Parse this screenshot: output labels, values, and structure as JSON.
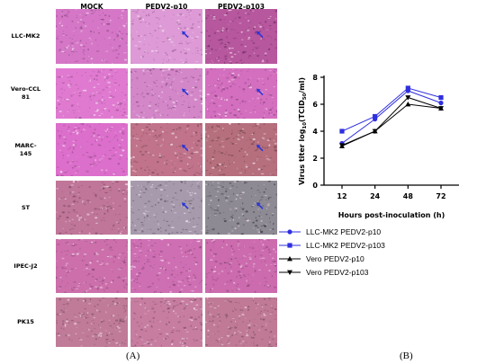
{
  "figure": {
    "panel_a": {
      "label": "(A)",
      "columns": [
        "MOCK",
        "PEDV2-p10",
        "PEDV2-p103"
      ],
      "rows": [
        {
          "label_lines": [
            "LLC-MK2"
          ],
          "tones": [
            {
              "base": "#d577c6",
              "speck": "#8a4a86"
            },
            {
              "base": "#dd9ad6",
              "speck": "#9c6194"
            },
            {
              "base": "#b7579e",
              "speck": "#6e2f62"
            }
          ],
          "arrows": [
            false,
            true,
            true
          ]
        },
        {
          "label_lines": [
            "Vero-CCL",
            "81"
          ],
          "tones": [
            {
              "base": "#e07ad0",
              "speck": "#a0559a"
            },
            {
              "base": "#d387c8",
              "speck": "#8a4d84"
            },
            {
              "base": "#d46fbf",
              "speck": "#87407b"
            }
          ],
          "arrows": [
            false,
            true,
            true
          ]
        },
        {
          "label_lines": [
            "MARC-",
            "145"
          ],
          "tones": [
            {
              "base": "#dc6fcb",
              "speck": "#9a4b8f"
            },
            {
              "base": "#c0738a",
              "speck": "#7a4a55"
            },
            {
              "base": "#b66f7d",
              "speck": "#72474d"
            }
          ],
          "arrows": [
            false,
            true,
            true
          ]
        },
        {
          "label_lines": [
            "ST"
          ],
          "tones": [
            {
              "base": "#c07698",
              "speck": "#7c4b62"
            },
            {
              "base": "#a79aac",
              "speck": "#5e5563"
            },
            {
              "base": "#8e8a94",
              "speck": "#3e3a44"
            }
          ],
          "arrows": [
            false,
            true,
            true
          ]
        },
        {
          "label_lines": [
            "IPEC-J2"
          ],
          "tones": [
            {
              "base": "#cc6fab",
              "speck": "#894877"
            },
            {
              "base": "#cf6fb3",
              "speck": "#8c487b"
            },
            {
              "base": "#cc6bae",
              "speck": "#884477"
            }
          ],
          "arrows": [
            false,
            false,
            false
          ]
        },
        {
          "label_lines": [
            "PK15"
          ],
          "tones": [
            {
              "base": "#c07b98",
              "speck": "#7c5063"
            },
            {
              "base": "#c77da0",
              "speck": "#805067"
            },
            {
              "base": "#c07a96",
              "speck": "#7b4f61"
            }
          ],
          "arrows": [
            false,
            false,
            false
          ]
        }
      ],
      "arrow_color": "#2a35d8"
    },
    "panel_b": {
      "label": "(B)"
    }
  },
  "chart_data": {
    "type": "line",
    "x": [
      12,
      24,
      48,
      72
    ],
    "xlabel": "Hours post-inoculation (h)",
    "ylabel_prefix": "Virus titer log",
    "ylabel_sub": "10",
    "ylabel_mid": "(TCID",
    "ylabel_sub2": "50",
    "ylabel_suffix": "/ml)",
    "ylim": [
      0,
      8
    ],
    "yticks": [
      "0",
      "2",
      "4",
      "6",
      "8"
    ],
    "xticks": [
      "12",
      "24",
      "48",
      "72"
    ],
    "series": [
      {
        "name": "LLC-MK2 PEDV2-p10",
        "values": [
          3.1,
          4.9,
          7.0,
          6.1
        ],
        "color": "#2f2fe0",
        "marker": "circle"
      },
      {
        "name": "LLC-MK2 PEDV2-p103",
        "values": [
          4.0,
          5.1,
          7.2,
          6.5
        ],
        "color": "#2f2fe0",
        "marker": "square"
      },
      {
        "name": "Vero PEDV2-p10",
        "values": [
          2.9,
          4.0,
          6.0,
          5.7
        ],
        "color": "#000000",
        "marker": "triangle-up"
      },
      {
        "name": "Vero PEDV2-p103",
        "values": [
          2.95,
          4.0,
          6.5,
          5.7
        ],
        "color": "#000000",
        "marker": "triangle-down"
      }
    ]
  }
}
